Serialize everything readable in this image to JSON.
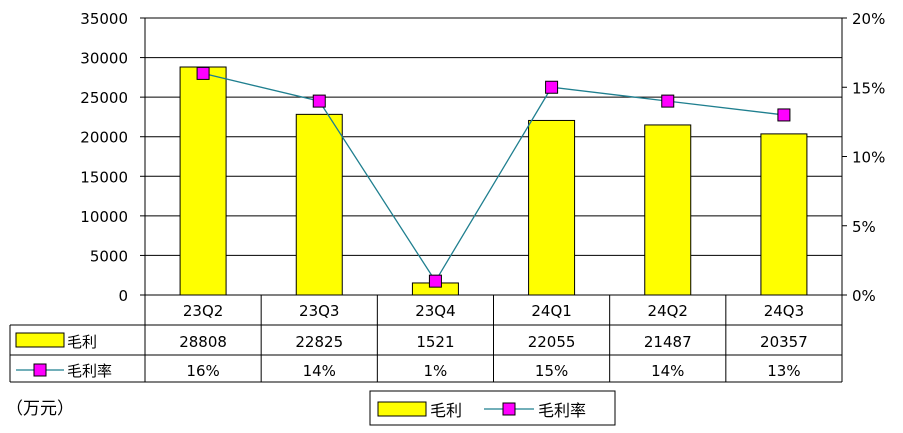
{
  "chart_data": {
    "type": "bar",
    "categories": [
      "23Q2",
      "23Q3",
      "23Q4",
      "24Q1",
      "24Q2",
      "24Q3"
    ],
    "series": [
      {
        "name": "毛利",
        "type": "bar",
        "axis": "left",
        "values": [
          28808,
          22825,
          1521,
          22055,
          21487,
          20357
        ],
        "color": "#ffff00"
      },
      {
        "name": "毛利率",
        "type": "line",
        "axis": "right",
        "values": [
          16,
          14,
          1,
          15,
          14,
          13
        ],
        "color": "#ff00ff",
        "line_color": "#1f7f8f"
      }
    ],
    "table_rows": [
      {
        "label": "毛利",
        "cells": [
          "28808",
          "22825",
          "1521",
          "22055",
          "21487",
          "20357"
        ]
      },
      {
        "label": "毛利率",
        "cells": [
          "16%",
          "14%",
          "1%",
          "15%",
          "14%",
          "13%"
        ]
      }
    ],
    "y_left": {
      "ticks": [
        "0",
        "5000",
        "10000",
        "15000",
        "20000",
        "25000",
        "30000",
        "35000"
      ],
      "lim": [
        0,
        35000
      ]
    },
    "y_right": {
      "ticks": [
        "0%",
        "5%",
        "10%",
        "15%",
        "20%"
      ],
      "lim": [
        0,
        20
      ]
    },
    "unit_note": "（万元）",
    "legend": {
      "position": "bottom",
      "entries": [
        "毛利",
        "毛利率"
      ]
    },
    "grid": true
  }
}
